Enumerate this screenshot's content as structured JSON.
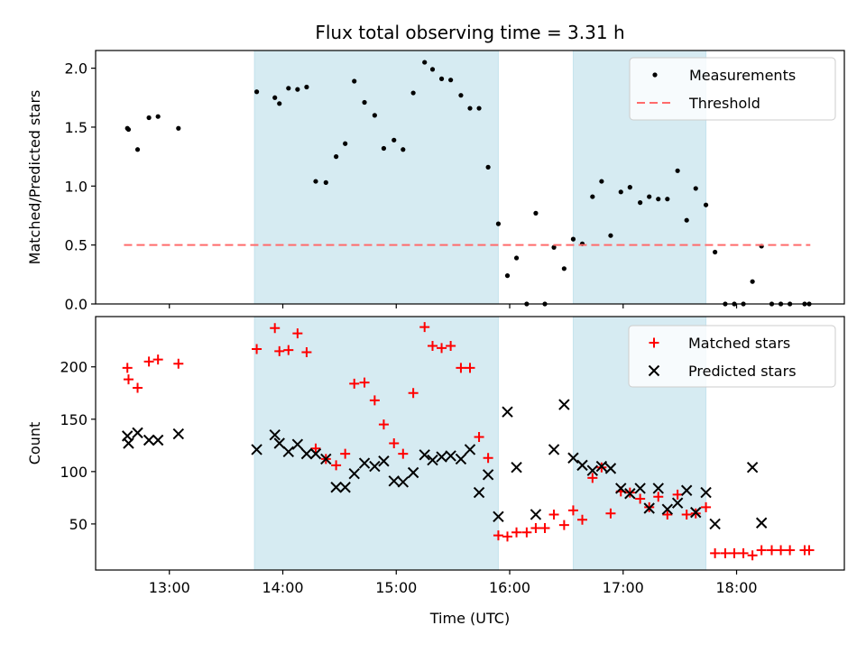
{
  "chart_data": [
    {
      "type": "scatter",
      "title": "Flux total observing time = 3.31 h",
      "xlabel": "",
      "ylabel": "Matched/Predicted stars",
      "xlim": [
        12.35,
        18.95
      ],
      "ylim": [
        0,
        2.15
      ],
      "yticks": [
        0.0,
        0.5,
        1.0,
        1.5,
        2.0
      ],
      "ytick_labels": [
        "0.0",
        "0.5",
        "1.0",
        "1.5",
        "2.0"
      ],
      "grid": false,
      "legend_position": "top-right",
      "shaded_x_ranges": [
        [
          13.75,
          15.9
        ],
        [
          16.56,
          17.73
        ]
      ],
      "shade_color": "#add8e6",
      "series": [
        {
          "name": "Measurements",
          "marker": "dot",
          "color": "#000000",
          "points": [
            [
              12.63,
              1.49
            ],
            [
              12.64,
              1.48
            ],
            [
              12.72,
              1.31
            ],
            [
              12.82,
              1.58
            ],
            [
              12.9,
              1.59
            ],
            [
              13.08,
              1.49
            ],
            [
              13.77,
              1.8
            ],
            [
              13.93,
              1.75
            ],
            [
              13.97,
              1.7
            ],
            [
              14.05,
              1.83
            ],
            [
              14.13,
              1.82
            ],
            [
              14.21,
              1.84
            ],
            [
              14.29,
              1.04
            ],
            [
              14.38,
              1.03
            ],
            [
              14.47,
              1.25
            ],
            [
              14.55,
              1.36
            ],
            [
              14.63,
              1.89
            ],
            [
              14.72,
              1.71
            ],
            [
              14.81,
              1.6
            ],
            [
              14.89,
              1.32
            ],
            [
              14.98,
              1.39
            ],
            [
              15.06,
              1.31
            ],
            [
              15.15,
              1.79
            ],
            [
              15.25,
              2.05
            ],
            [
              15.32,
              1.99
            ],
            [
              15.4,
              1.91
            ],
            [
              15.48,
              1.9
            ],
            [
              15.57,
              1.77
            ],
            [
              15.65,
              1.66
            ],
            [
              15.73,
              1.66
            ],
            [
              15.81,
              1.16
            ],
            [
              15.9,
              0.68
            ],
            [
              15.98,
              0.24
            ],
            [
              16.06,
              0.39
            ],
            [
              16.15,
              0.0
            ],
            [
              16.23,
              0.77
            ],
            [
              16.31,
              0.0
            ],
            [
              16.39,
              0.48
            ],
            [
              16.48,
              0.3
            ],
            [
              16.56,
              0.55
            ],
            [
              16.64,
              0.51
            ],
            [
              16.73,
              0.91
            ],
            [
              16.81,
              1.04
            ],
            [
              16.89,
              0.58
            ],
            [
              16.98,
              0.95
            ],
            [
              17.06,
              0.99
            ],
            [
              17.15,
              0.86
            ],
            [
              17.23,
              0.91
            ],
            [
              17.31,
              0.89
            ],
            [
              17.39,
              0.89
            ],
            [
              17.48,
              1.13
            ],
            [
              17.56,
              0.71
            ],
            [
              17.64,
              0.98
            ],
            [
              17.73,
              0.84
            ],
            [
              17.81,
              0.44
            ],
            [
              17.9,
              0.0
            ],
            [
              17.98,
              0.0
            ],
            [
              18.06,
              0.0
            ],
            [
              18.14,
              0.19
            ],
            [
              18.22,
              0.49
            ],
            [
              18.31,
              0.0
            ],
            [
              18.39,
              0.0
            ],
            [
              18.47,
              0.0
            ],
            [
              18.6,
              0.0
            ],
            [
              18.64,
              0.0
            ]
          ]
        },
        {
          "name": "Threshold",
          "marker": "dashed-line",
          "color": "#ff6b6b",
          "points": [
            [
              12.6,
              0.5
            ],
            [
              18.65,
              0.5
            ]
          ]
        }
      ]
    },
    {
      "type": "scatter",
      "title": "",
      "xlabel": "Time (UTC)",
      "ylabel": "Count",
      "xlim": [
        12.35,
        18.95
      ],
      "ylim": [
        6,
        248
      ],
      "xticks": [
        13,
        14,
        15,
        16,
        17,
        18
      ],
      "xtick_labels": [
        "13:00",
        "14:00",
        "15:00",
        "16:00",
        "17:00",
        "18:00"
      ],
      "yticks": [
        50,
        100,
        150,
        200
      ],
      "ytick_labels": [
        "50",
        "100",
        "150",
        "200"
      ],
      "grid": false,
      "legend_position": "top-right",
      "shaded_x_ranges": [
        [
          13.75,
          15.9
        ],
        [
          16.56,
          17.73
        ]
      ],
      "shade_color": "#add8e6",
      "series": [
        {
          "name": "Matched stars",
          "marker": "plus",
          "color": "#ff0000",
          "points": [
            [
              12.63,
              199
            ],
            [
              12.64,
              188
            ],
            [
              12.72,
              180
            ],
            [
              12.82,
              205
            ],
            [
              12.9,
              207
            ],
            [
              13.08,
              203
            ],
            [
              13.77,
              217
            ],
            [
              13.93,
              237
            ],
            [
              13.97,
              215
            ],
            [
              14.05,
              216
            ],
            [
              14.13,
              232
            ],
            [
              14.21,
              214
            ],
            [
              14.29,
              122
            ],
            [
              14.38,
              112
            ],
            [
              14.47,
              106
            ],
            [
              14.55,
              117
            ],
            [
              14.63,
              184
            ],
            [
              14.72,
              185
            ],
            [
              14.81,
              168
            ],
            [
              14.89,
              145
            ],
            [
              14.98,
              127
            ],
            [
              15.06,
              117
            ],
            [
              15.15,
              175
            ],
            [
              15.25,
              238
            ],
            [
              15.32,
              220
            ],
            [
              15.4,
              218
            ],
            [
              15.48,
              220
            ],
            [
              15.57,
              199
            ],
            [
              15.65,
              199
            ],
            [
              15.73,
              133
            ],
            [
              15.81,
              113
            ],
            [
              15.9,
              39
            ],
            [
              15.98,
              38
            ],
            [
              16.06,
              42
            ],
            [
              16.15,
              42
            ],
            [
              16.23,
              46
            ],
            [
              16.31,
              46
            ],
            [
              16.39,
              59
            ],
            [
              16.48,
              49
            ],
            [
              16.56,
              63
            ],
            [
              16.64,
              54
            ],
            [
              16.73,
              94
            ],
            [
              16.81,
              104
            ],
            [
              16.89,
              60
            ],
            [
              16.98,
              81
            ],
            [
              17.06,
              80
            ],
            [
              17.15,
              74
            ],
            [
              17.23,
              66
            ],
            [
              17.31,
              76
            ],
            [
              17.39,
              59
            ],
            [
              17.48,
              78
            ],
            [
              17.56,
              59
            ],
            [
              17.64,
              60
            ],
            [
              17.73,
              66
            ],
            [
              17.81,
              22
            ],
            [
              17.9,
              22
            ],
            [
              17.98,
              22
            ],
            [
              18.06,
              22
            ],
            [
              18.14,
              20
            ],
            [
              18.22,
              25
            ],
            [
              18.31,
              25
            ],
            [
              18.39,
              25
            ],
            [
              18.47,
              25
            ],
            [
              18.6,
              25
            ],
            [
              18.64,
              25
            ]
          ]
        },
        {
          "name": "Predicted stars",
          "marker": "x",
          "color": "#000000",
          "points": [
            [
              12.63,
              134
            ],
            [
              12.64,
              127
            ],
            [
              12.72,
              137
            ],
            [
              12.82,
              130
            ],
            [
              12.9,
              130
            ],
            [
              13.08,
              136
            ],
            [
              13.77,
              121
            ],
            [
              13.93,
              135
            ],
            [
              13.97,
              127
            ],
            [
              14.05,
              119
            ],
            [
              14.13,
              126
            ],
            [
              14.21,
              117
            ],
            [
              14.29,
              117
            ],
            [
              14.38,
              112
            ],
            [
              14.47,
              85
            ],
            [
              14.55,
              85
            ],
            [
              14.63,
              98
            ],
            [
              14.72,
              108
            ],
            [
              14.81,
              105
            ],
            [
              14.89,
              110
            ],
            [
              14.98,
              91
            ],
            [
              15.06,
              90
            ],
            [
              15.15,
              99
            ],
            [
              15.25,
              116
            ],
            [
              15.32,
              111
            ],
            [
              15.4,
              114
            ],
            [
              15.48,
              115
            ],
            [
              15.57,
              112
            ],
            [
              15.65,
              121
            ],
            [
              15.73,
              80
            ],
            [
              15.81,
              97
            ],
            [
              15.9,
              57
            ],
            [
              15.98,
              157
            ],
            [
              16.06,
              104
            ],
            [
              16.23,
              59
            ],
            [
              16.39,
              121
            ],
            [
              16.48,
              164
            ],
            [
              16.56,
              113
            ],
            [
              16.64,
              106
            ],
            [
              16.73,
              101
            ],
            [
              16.81,
              105
            ],
            [
              16.89,
              103
            ],
            [
              16.98,
              84
            ],
            [
              17.06,
              79
            ],
            [
              17.15,
              84
            ],
            [
              17.23,
              65
            ],
            [
              17.31,
              84
            ],
            [
              17.39,
              64
            ],
            [
              17.48,
              70
            ],
            [
              17.56,
              82
            ],
            [
              17.64,
              61
            ],
            [
              17.73,
              80
            ],
            [
              17.81,
              50
            ],
            [
              18.14,
              104
            ],
            [
              18.22,
              51
            ]
          ]
        }
      ]
    }
  ]
}
